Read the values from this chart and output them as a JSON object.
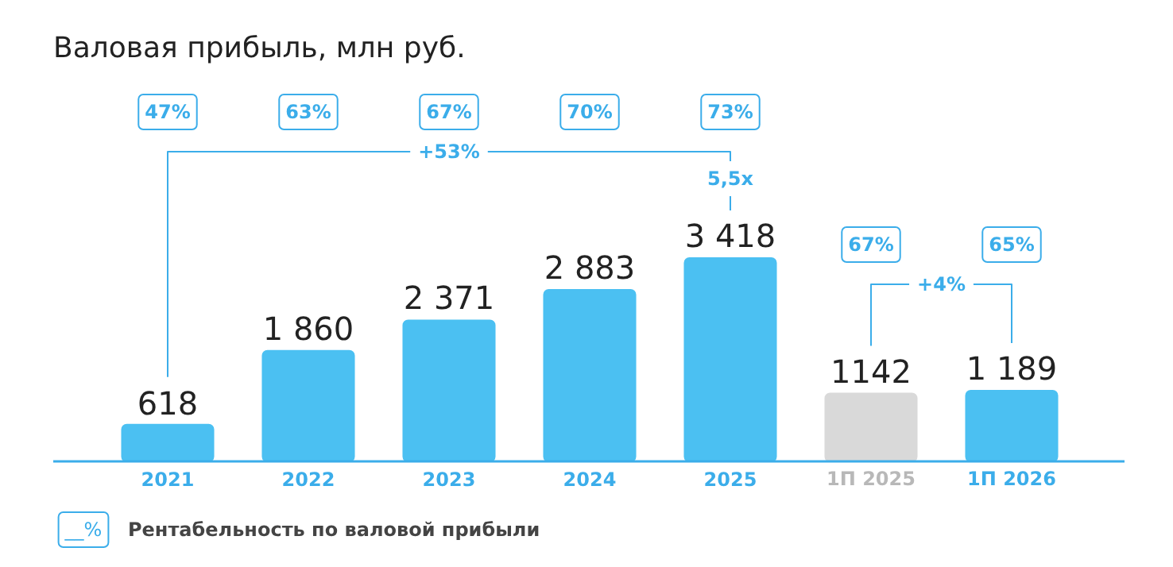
{
  "chart_data": {
    "type": "bar",
    "title": "Валовая прибыль, млн руб.",
    "categories": [
      "2021",
      "2022",
      "2023",
      "2024",
      "2025",
      "1П 2025",
      "1П 2026"
    ],
    "values": [
      618,
      1860,
      2371,
      2883,
      3418,
      1142,
      1189
    ],
    "value_labels": [
      "618",
      "1 860",
      "2 371",
      "2 883",
      "3 418",
      "1142",
      "1 189"
    ],
    "colors": [
      "#4bc0f2",
      "#4bc0f2",
      "#4bc0f2",
      "#4bc0f2",
      "#4bc0f2",
      "#d9d9d9",
      "#4bc0f2"
    ],
    "annotations": [
      "47%",
      "63%",
      "67%",
      "70%",
      "73%",
      "67%",
      "65%",
      "+53%",
      "5,5x",
      "+4%",
      "__%",
      "Рентабельность по валовой прибыли"
    ]
  }
}
